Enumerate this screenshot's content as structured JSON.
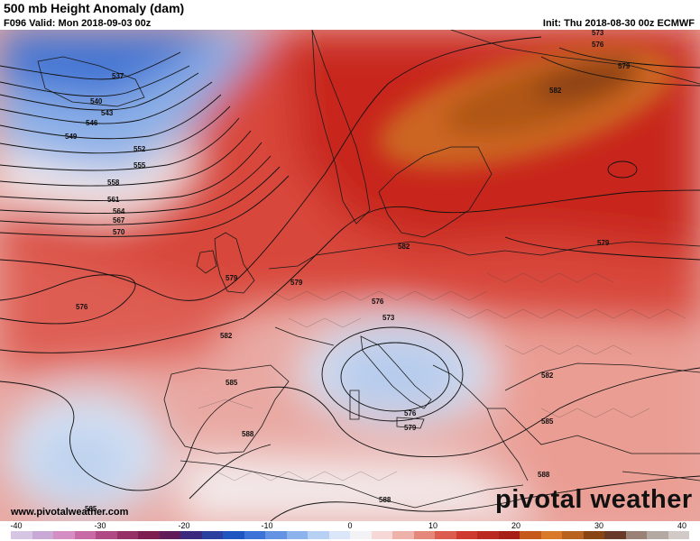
{
  "header": {
    "title": "500 mb Height Anomaly (dam)",
    "valid": "F096 Valid: Mon 2018-09-03 00z",
    "init": "Init: Thu 2018-08-30 00z ECMWF"
  },
  "footer": {
    "url": "www.pivotalweather.com",
    "brand": "pivotal weather"
  },
  "contour_labels": [
    "537",
    "540",
    "543",
    "546",
    "549",
    "552",
    "555",
    "558",
    "561",
    "564",
    "567",
    "570",
    "573",
    "576",
    "579",
    "582",
    "585",
    "588"
  ],
  "colorbar": {
    "ticks": [
      "-40",
      "-30",
      "-20",
      "-10",
      "0",
      "10",
      "20",
      "30",
      "40"
    ],
    "colors": [
      "#d6c6e4",
      "#c9a9d6",
      "#d48ec4",
      "#c76aa6",
      "#b04a85",
      "#953167",
      "#7e1f52",
      "#5f1b5a",
      "#3c2a7e",
      "#2a3f9e",
      "#1f55c0",
      "#3d73d6",
      "#6393e2",
      "#8db3ec",
      "#b7d0f3",
      "#dbe7f8",
      "#f3f3f5",
      "#f6d9d6",
      "#efb2aa",
      "#e6877c",
      "#dc5c50",
      "#cf3a30",
      "#bb2a21",
      "#a81f17",
      "#c65a1c",
      "#d9792a",
      "#b8631f",
      "#8a4514",
      "#6a3a28",
      "#9a8276",
      "#b5a9a3",
      "#d1cac6"
    ]
  }
}
